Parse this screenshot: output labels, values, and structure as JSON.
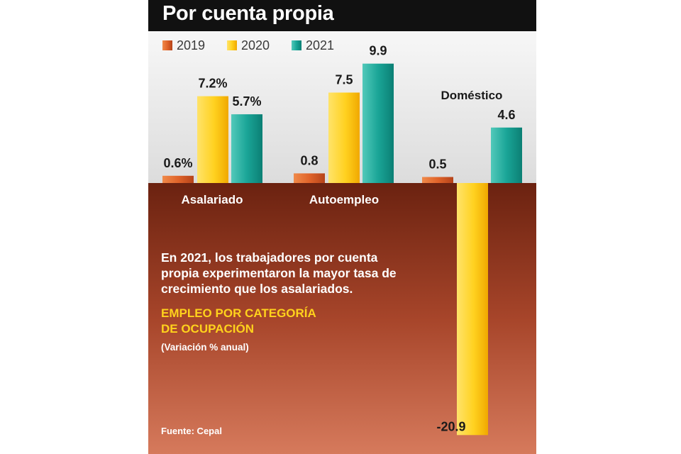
{
  "title": "Por cuenta propia",
  "note": "En 2021, los trabajadores por cuenta propia experimentaron la mayor tasa de crecimiento que los asalariados.",
  "subtitle_line1": "EMPLEO POR CATEGORÍA",
  "subtitle_line2": "DE OCUPACIÓN",
  "units": "(Variación % anual)",
  "source": "Fuente: Cepal",
  "colors": {
    "header_bg": "#111111",
    "upper_bg": "#e6e6e6",
    "lower_bg_top": "#6b2210",
    "lower_bg_bottom": "#d67a5c",
    "series_2019": "#e0642a",
    "series_2020": "#ffd11f",
    "series_2021": "#1aa597",
    "subtitle": "#ffd21c"
  },
  "chart_data": {
    "type": "bar",
    "title": "Por cuenta propia",
    "categories": [
      "Asalariado",
      "Autoempleo",
      "Doméstico"
    ],
    "series": [
      {
        "name": "2019",
        "values": [
          0.6,
          0.8,
          0.5
        ],
        "labels": [
          "0.6%",
          "0.8",
          "0.5"
        ]
      },
      {
        "name": "2020",
        "values": [
          7.2,
          7.5,
          -20.9
        ],
        "labels": [
          "7.2%",
          "7.5",
          "-20.9"
        ]
      },
      {
        "name": "2021",
        "values": [
          5.7,
          9.9,
          4.6
        ],
        "labels": [
          "5.7%",
          "9.9",
          "4.6"
        ]
      }
    ],
    "legend": "top-left",
    "grid": false,
    "xlabel": "",
    "ylabel": "(Variación % anual)"
  }
}
